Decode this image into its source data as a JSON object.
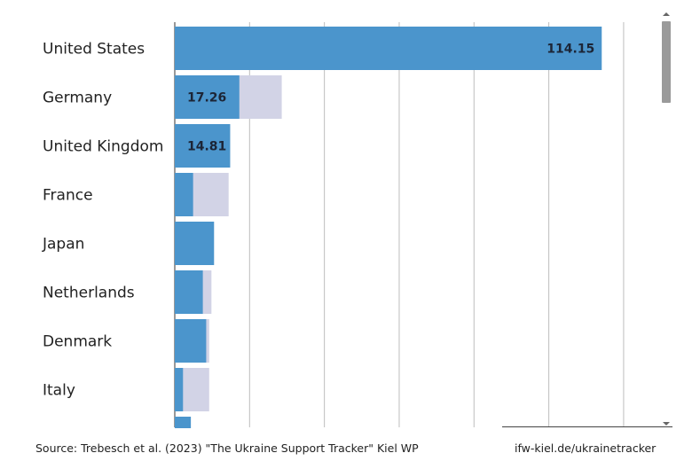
{
  "chart_data": {
    "type": "bar",
    "orientation": "horizontal",
    "categories": [
      "United States",
      "Germany",
      "United Kingdom",
      "France",
      "Japan",
      "Netherlands",
      "Denmark",
      "Italy"
    ],
    "series": [
      {
        "values": [
          114.15,
          17.26,
          14.81,
          4.9,
          10.5,
          7.5,
          8.4,
          2.2
        ]
      },
      {
        "values": [
          114.15,
          28.6,
          14.81,
          14.4,
          10.5,
          9.8,
          9.2,
          9.2
        ]
      }
    ],
    "data_labels": [
      "114.15",
      "17.26",
      "14.81",
      "",
      "",
      "",
      "",
      ""
    ],
    "xlim": [
      0,
      125
    ],
    "grid": true,
    "colors": {
      "primary": "#4b95cc",
      "secondary": "#d2d3e6",
      "grid": "#bdbdbd"
    }
  },
  "footer": {
    "source": "Source: Trebesch et al. (2023) \"The Ukraine Support Tracker\" Kiel WP",
    "link": "ifw-kiel.de/ukrainetracker"
  }
}
